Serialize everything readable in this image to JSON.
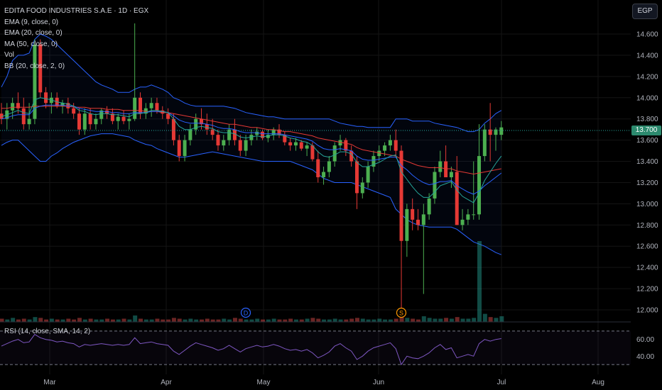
{
  "chart": {
    "title": "EDITA FOOD INDUSTRIES S.A.E · 1D · EGX",
    "currency": "EGP",
    "last_price": "13.700",
    "indicators": [
      "EMA (9, close, 0)",
      "EMA (20, close, 0)",
      "MA (50, close, 0)",
      "Vol",
      "BB (20, close, 2, 0)"
    ],
    "rsi_label": "RSI (14, close, SMA, 14, 2)",
    "markers": [
      {
        "label": "D",
        "color": "#2962ff"
      },
      {
        "label": "S",
        "color": "#ff9800"
      }
    ]
  },
  "chart_data": {
    "type": "candlestick",
    "y_ticks": [
      "14.600",
      "14.400",
      "14.200",
      "14.000",
      "13.800",
      "13.600",
      "13.400",
      "13.200",
      "13.000",
      "12.800",
      "12.600",
      "12.400",
      "12.200",
      "12.000"
    ],
    "ylim": [
      11.98,
      14.75
    ],
    "x_ticks": [
      "Mar",
      "Apr",
      "May",
      "Jun",
      "Jul",
      "Aug"
    ],
    "candles_ohlc": [
      [
        13.85,
        13.95,
        13.75,
        13.8
      ],
      [
        13.8,
        13.95,
        13.7,
        13.88
      ],
      [
        13.88,
        14.0,
        13.8,
        13.95
      ],
      [
        13.95,
        14.05,
        13.85,
        13.9
      ],
      [
        13.9,
        14.0,
        13.7,
        13.75
      ],
      [
        13.75,
        13.95,
        13.7,
        13.8
      ],
      [
        13.8,
        14.55,
        13.75,
        14.5
      ],
      [
        14.5,
        14.55,
        14.0,
        14.05
      ],
      [
        14.05,
        14.1,
        13.9,
        13.95
      ],
      [
        13.95,
        14.05,
        13.85,
        14.0
      ],
      [
        14.0,
        14.05,
        13.9,
        13.92
      ],
      [
        13.92,
        13.98,
        13.85,
        13.95
      ],
      [
        13.95,
        14.0,
        13.85,
        13.9
      ],
      [
        13.9,
        13.95,
        13.8,
        13.85
      ],
      [
        13.85,
        13.9,
        13.65,
        13.7
      ],
      [
        13.7,
        13.9,
        13.65,
        13.85
      ],
      [
        13.85,
        13.9,
        13.7,
        13.75
      ],
      [
        13.75,
        13.85,
        13.7,
        13.8
      ],
      [
        13.8,
        13.9,
        13.75,
        13.88
      ],
      [
        13.88,
        13.92,
        13.8,
        13.85
      ],
      [
        13.85,
        13.9,
        13.75,
        13.78
      ],
      [
        13.78,
        13.85,
        13.7,
        13.82
      ],
      [
        13.82,
        13.88,
        13.75,
        13.78
      ],
      [
        13.78,
        13.85,
        13.7,
        13.8
      ],
      [
        13.8,
        14.7,
        13.78,
        14.0
      ],
      [
        14.0,
        14.05,
        13.8,
        13.85
      ],
      [
        13.85,
        13.95,
        13.8,
        13.9
      ],
      [
        13.9,
        14.0,
        13.82,
        13.95
      ],
      [
        13.95,
        14.0,
        13.85,
        13.88
      ],
      [
        13.88,
        13.92,
        13.8,
        13.85
      ],
      [
        13.85,
        13.9,
        13.75,
        13.8
      ],
      [
        13.8,
        13.85,
        13.55,
        13.6
      ],
      [
        13.6,
        13.65,
        13.4,
        13.45
      ],
      [
        13.45,
        13.65,
        13.4,
        13.6
      ],
      [
        13.6,
        13.75,
        13.55,
        13.7
      ],
      [
        13.7,
        13.85,
        13.65,
        13.8
      ],
      [
        13.8,
        13.9,
        13.7,
        13.75
      ],
      [
        13.75,
        13.85,
        13.65,
        13.7
      ],
      [
        13.7,
        13.8,
        13.6,
        13.65
      ],
      [
        13.65,
        13.7,
        13.5,
        13.55
      ],
      [
        13.55,
        13.65,
        13.5,
        13.6
      ],
      [
        13.6,
        13.75,
        13.55,
        13.7
      ],
      [
        13.7,
        13.8,
        13.55,
        13.6
      ],
      [
        13.6,
        13.65,
        13.45,
        13.5
      ],
      [
        13.5,
        13.65,
        13.45,
        13.6
      ],
      [
        13.6,
        13.7,
        13.55,
        13.65
      ],
      [
        13.65,
        13.72,
        13.6,
        13.68
      ],
      [
        13.68,
        13.7,
        13.6,
        13.62
      ],
      [
        13.62,
        13.7,
        13.58,
        13.65
      ],
      [
        13.65,
        13.72,
        13.6,
        13.7
      ],
      [
        13.7,
        13.75,
        13.62,
        13.65
      ],
      [
        13.65,
        13.68,
        13.55,
        13.58
      ],
      [
        13.58,
        13.62,
        13.5,
        13.55
      ],
      [
        13.55,
        13.62,
        13.5,
        13.58
      ],
      [
        13.58,
        13.6,
        13.5,
        13.52
      ],
      [
        13.52,
        13.58,
        13.45,
        13.55
      ],
      [
        13.55,
        13.58,
        13.4,
        13.42
      ],
      [
        13.42,
        13.5,
        13.2,
        13.25
      ],
      [
        13.25,
        13.35,
        13.18,
        13.3
      ],
      [
        13.3,
        13.45,
        13.25,
        13.4
      ],
      [
        13.4,
        13.58,
        13.35,
        13.55
      ],
      [
        13.55,
        13.65,
        13.5,
        13.6
      ],
      [
        13.6,
        13.62,
        13.45,
        13.5
      ],
      [
        13.5,
        13.55,
        13.35,
        13.4
      ],
      [
        13.4,
        13.45,
        12.95,
        13.1
      ],
      [
        13.1,
        13.25,
        13.05,
        13.2
      ],
      [
        13.2,
        13.4,
        13.15,
        13.35
      ],
      [
        13.35,
        13.5,
        13.3,
        13.45
      ],
      [
        13.45,
        13.55,
        13.4,
        13.5
      ],
      [
        13.5,
        13.58,
        13.45,
        13.55
      ],
      [
        13.55,
        13.65,
        13.5,
        13.6
      ],
      [
        13.6,
        13.7,
        13.45,
        13.5
      ],
      [
        13.5,
        13.55,
        12.0,
        12.65
      ],
      [
        12.65,
        13.0,
        12.5,
        12.95
      ],
      [
        12.95,
        13.05,
        12.75,
        12.85
      ],
      [
        12.85,
        12.95,
        12.75,
        12.8
      ],
      [
        12.8,
        13.0,
        12.15,
        12.9
      ],
      [
        12.9,
        13.1,
        12.85,
        13.05
      ],
      [
        13.05,
        13.35,
        13.0,
        13.3
      ],
      [
        13.3,
        13.5,
        13.25,
        13.4
      ],
      [
        13.4,
        13.55,
        13.3,
        13.25
      ],
      [
        13.25,
        13.35,
        13.15,
        13.3
      ],
      [
        13.3,
        13.45,
        12.8,
        12.8
      ],
      [
        12.8,
        12.95,
        12.75,
        12.85
      ],
      [
        12.85,
        12.95,
        12.8,
        12.9
      ],
      [
        12.9,
        13.4,
        12.85,
        12.9
      ],
      [
        12.9,
        13.75,
        12.85,
        13.45
      ],
      [
        13.45,
        13.75,
        13.4,
        13.7
      ],
      [
        13.7,
        13.95,
        13.4,
        13.65
      ],
      [
        13.65,
        13.72,
        13.5,
        13.7
      ],
      [
        13.65,
        13.78,
        13.6,
        13.72
      ]
    ],
    "ema9": [
      13.82,
      13.84,
      13.86,
      13.88,
      13.86,
      13.85,
      13.98,
      14.0,
      13.99,
      13.98,
      13.96,
      13.95,
      13.94,
      13.92,
      13.88,
      13.87,
      13.85,
      13.84,
      13.85,
      13.85,
      13.84,
      13.84,
      13.83,
      13.82,
      13.85,
      13.85,
      13.86,
      13.88,
      13.88,
      13.87,
      13.86,
      13.8,
      13.73,
      13.7,
      13.7,
      13.72,
      13.73,
      13.72,
      13.71,
      13.68,
      13.67,
      13.67,
      13.66,
      13.63,
      13.62,
      13.63,
      13.64,
      13.63,
      13.64,
      13.65,
      13.65,
      13.64,
      13.62,
      13.61,
      13.59,
      13.58,
      13.55,
      13.49,
      13.45,
      13.44,
      13.46,
      13.49,
      13.49,
      13.47,
      13.39,
      13.35,
      13.35,
      13.37,
      13.39,
      13.42,
      13.45,
      13.46,
      13.3,
      13.23,
      13.16,
      13.1,
      13.06,
      13.06,
      13.11,
      13.17,
      13.19,
      13.21,
      13.13,
      13.07,
      13.04,
      13.01,
      13.1,
      13.22,
      13.3,
      13.38,
      13.45
    ],
    "ema20": [
      13.8,
      13.81,
      13.83,
      13.84,
      13.84,
      13.84,
      13.9,
      13.92,
      13.93,
      13.93,
      13.93,
      13.93,
      13.92,
      13.92,
      13.9,
      13.89,
      13.88,
      13.87,
      13.87,
      13.87,
      13.86,
      13.86,
      13.85,
      13.85,
      13.86,
      13.86,
      13.86,
      13.87,
      13.87,
      13.87,
      13.86,
      13.83,
      13.79,
      13.77,
      13.76,
      13.76,
      13.76,
      13.75,
      13.74,
      13.72,
      13.71,
      13.71,
      13.7,
      13.68,
      13.67,
      13.67,
      13.67,
      13.66,
      13.66,
      13.66,
      13.66,
      13.65,
      13.64,
      13.63,
      13.62,
      13.61,
      13.59,
      13.55,
      13.52,
      13.51,
      13.51,
      13.52,
      13.51,
      13.5,
      13.45,
      13.42,
      13.41,
      13.41,
      13.42,
      13.43,
      13.44,
      13.44,
      13.36,
      13.32,
      13.27,
      13.23,
      13.2,
      13.18,
      13.19,
      13.21,
      13.21,
      13.22,
      13.17,
      13.14,
      13.11,
      13.09,
      13.12,
      13.17,
      13.21,
      13.25,
      13.29
    ],
    "ma50": [
      13.9,
      13.9,
      13.91,
      13.91,
      13.91,
      13.91,
      13.92,
      13.92,
      13.92,
      13.92,
      13.92,
      13.92,
      13.92,
      13.91,
      13.91,
      13.91,
      13.9,
      13.9,
      13.9,
      13.89,
      13.89,
      13.89,
      13.88,
      13.88,
      13.88,
      13.88,
      13.87,
      13.87,
      13.87,
      13.86,
      13.86,
      13.85,
      13.84,
      13.83,
      13.82,
      13.81,
      13.8,
      13.79,
      13.78,
      13.77,
      13.76,
      13.75,
      13.75,
      13.74,
      13.73,
      13.72,
      13.72,
      13.71,
      13.7,
      13.7,
      13.69,
      13.68,
      13.68,
      13.67,
      13.66,
      13.65,
      13.64,
      13.62,
      13.61,
      13.6,
      13.59,
      13.58,
      13.57,
      13.56,
      13.53,
      13.51,
      13.5,
      13.49,
      13.48,
      13.47,
      13.46,
      13.45,
      13.42,
      13.4,
      13.38,
      13.36,
      13.35,
      13.34,
      13.34,
      13.34,
      13.33,
      13.33,
      13.31,
      13.3,
      13.29,
      13.28,
      13.29,
      13.3,
      13.31,
      13.32,
      13.33
    ],
    "bb_upper": [
      14.1,
      14.2,
      14.35,
      14.4,
      14.4,
      14.42,
      14.55,
      14.6,
      14.58,
      14.55,
      14.5,
      14.45,
      14.4,
      14.35,
      14.3,
      14.25,
      14.2,
      14.15,
      14.12,
      14.1,
      14.08,
      14.05,
      14.05,
      14.05,
      14.08,
      14.1,
      14.1,
      14.12,
      14.1,
      14.08,
      14.05,
      14.0,
      13.98,
      13.95,
      13.93,
      13.92,
      13.92,
      13.92,
      13.92,
      13.92,
      13.92,
      13.91,
      13.9,
      13.88,
      13.86,
      13.85,
      13.84,
      13.83,
      13.82,
      13.82,
      13.81,
      13.8,
      13.8,
      13.8,
      13.8,
      13.8,
      13.8,
      13.8,
      13.8,
      13.8,
      13.78,
      13.76,
      13.75,
      13.74,
      13.73,
      13.73,
      13.72,
      13.72,
      13.72,
      13.72,
      13.72,
      13.8,
      13.8,
      13.8,
      13.78,
      13.78,
      13.78,
      13.78,
      13.76,
      13.75,
      13.74,
      13.73,
      13.72,
      13.7,
      13.68,
      13.68,
      13.7,
      13.76,
      13.8,
      13.85,
      13.88
    ],
    "bb_lower": [
      13.55,
      13.58,
      13.6,
      13.6,
      13.55,
      13.5,
      13.45,
      13.4,
      13.4,
      13.45,
      13.48,
      13.52,
      13.55,
      13.58,
      13.6,
      13.62,
      13.64,
      13.65,
      13.66,
      13.66,
      13.66,
      13.65,
      13.64,
      13.63,
      13.6,
      13.58,
      13.56,
      13.55,
      13.52,
      13.5,
      13.48,
      13.46,
      13.44,
      13.44,
      13.45,
      13.46,
      13.47,
      13.48,
      13.49,
      13.48,
      13.47,
      13.46,
      13.45,
      13.44,
      13.43,
      13.42,
      13.41,
      13.4,
      13.4,
      13.4,
      13.4,
      13.4,
      13.4,
      13.38,
      13.36,
      13.34,
      13.32,
      13.28,
      13.24,
      13.22,
      13.2,
      13.2,
      13.2,
      13.2,
      13.18,
      13.16,
      13.14,
      13.12,
      13.1,
      13.08,
      13.06,
      12.95,
      12.9,
      12.85,
      12.82,
      12.8,
      12.79,
      12.78,
      12.78,
      12.78,
      12.78,
      12.78,
      12.76,
      12.72,
      12.68,
      12.64,
      12.62,
      12.6,
      12.57,
      12.54,
      12.52
    ],
    "volume": [
      0.04,
      0.03,
      0.05,
      0.03,
      0.04,
      0.03,
      0.06,
      0.05,
      0.03,
      0.04,
      0.03,
      0.03,
      0.04,
      0.03,
      0.05,
      0.03,
      0.04,
      0.03,
      0.03,
      0.04,
      0.03,
      0.03,
      0.04,
      0.03,
      0.08,
      0.04,
      0.03,
      0.03,
      0.04,
      0.03,
      0.03,
      0.05,
      0.04,
      0.03,
      0.04,
      0.03,
      0.03,
      0.04,
      0.03,
      0.03,
      0.04,
      0.03,
      0.05,
      0.04,
      0.03,
      0.03,
      0.04,
      0.03,
      0.03,
      0.04,
      0.03,
      0.03,
      0.04,
      0.03,
      0.03,
      0.04,
      0.05,
      0.04,
      0.03,
      0.03,
      0.04,
      0.03,
      0.03,
      0.04,
      0.05,
      0.04,
      0.03,
      0.03,
      0.04,
      0.03,
      0.03,
      0.04,
      0.07,
      0.05,
      0.04,
      0.03,
      0.07,
      0.05,
      0.04,
      0.04,
      0.05,
      0.04,
      0.06,
      0.04,
      0.04,
      0.05,
      1.0,
      0.1,
      0.06,
      0.05,
      0.07
    ],
    "rsi": [
      52,
      55,
      58,
      60,
      56,
      57,
      66,
      62,
      60,
      59,
      57,
      58,
      56,
      55,
      51,
      54,
      53,
      54,
      55,
      54,
      53,
      54,
      53,
      54,
      62,
      55,
      56,
      57,
      55,
      54,
      53,
      46,
      42,
      47,
      52,
      56,
      54,
      52,
      50,
      47,
      49,
      53,
      49,
      45,
      49,
      51,
      53,
      51,
      52,
      54,
      52,
      49,
      47,
      48,
      46,
      48,
      44,
      38,
      41,
      45,
      52,
      55,
      50,
      46,
      36,
      40,
      46,
      50,
      52,
      54,
      56,
      49,
      30,
      40,
      38,
      37,
      40,
      44,
      50,
      54,
      48,
      50,
      38,
      40,
      42,
      40,
      55,
      60,
      58,
      60,
      61
    ],
    "rsi_ticks": [
      "60.00",
      "40.00"
    ],
    "rsi_ylim": [
      25,
      75
    ],
    "rsi_bands": [
      70,
      30
    ]
  }
}
